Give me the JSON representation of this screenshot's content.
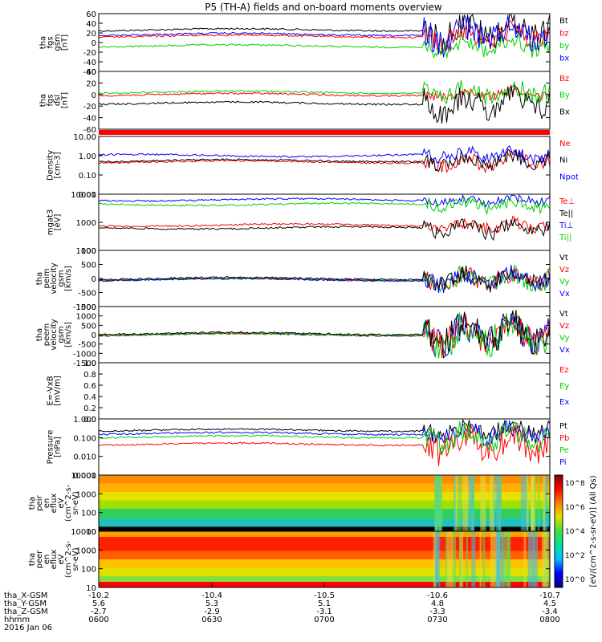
{
  "title": "P5 (TH-A) fields and on-board moments overview",
  "colors": {
    "black": "#000000",
    "red": "#ff0000",
    "green": "#00d000",
    "blue": "#0000ff"
  },
  "panels": [
    {
      "ylabel": [
        "tha",
        "fgs",
        "gsm",
        "[nT]"
      ],
      "yticks": [
        "60",
        "40",
        "20",
        "0",
        "-20",
        "-40",
        "-60"
      ],
      "legend": [
        {
          "text": "Bt",
          "color": "black"
        },
        {
          "text": "bz",
          "color": "red"
        },
        {
          "text": "by",
          "color": "green"
        },
        {
          "text": "bx",
          "color": "blue"
        }
      ]
    },
    {
      "ylabel": [
        "tha",
        "fgs",
        "dsl",
        "[nT]"
      ],
      "yticks": [
        "40",
        "20",
        "0",
        "-20",
        "-40",
        "-60"
      ],
      "legend": [
        {
          "text": "Bz",
          "color": "red"
        },
        {
          "text": "By",
          "color": "green"
        },
        {
          "text": "Bx",
          "color": "black"
        }
      ]
    },
    {
      "ylabel": [
        "Density",
        "[cm-3]"
      ],
      "yticks": [
        "10.00",
        "1.00",
        "0.10",
        "0.01"
      ],
      "legend": [
        {
          "text": "Ne",
          "color": "red"
        },
        {
          "text": "Ni",
          "color": "black"
        },
        {
          "text": "Npot",
          "color": "blue"
        }
      ]
    },
    {
      "ylabel": [
        "mgat3",
        "[eV]"
      ],
      "yticks": [
        "10000",
        "1000",
        "100"
      ],
      "legend": [
        {
          "text": "Te⊥",
          "color": "red"
        },
        {
          "text": "Te||",
          "color": "black"
        },
        {
          "text": "Ti⊥",
          "color": "blue"
        },
        {
          "text": "Ti||",
          "color": "green"
        }
      ]
    },
    {
      "ylabel": [
        "tha",
        "peim",
        "velocity",
        "gsm",
        "[km/s]"
      ],
      "yticks": [
        "1000",
        "500",
        "0",
        "-500",
        "-1000"
      ],
      "legend": [
        {
          "text": "Vt",
          "color": "black"
        },
        {
          "text": "Vz",
          "color": "red"
        },
        {
          "text": "Vy",
          "color": "green"
        },
        {
          "text": "Vx",
          "color": "blue"
        }
      ]
    },
    {
      "ylabel": [
        "tha",
        "peem",
        "velocity",
        "gsm",
        "[km/s]"
      ],
      "yticks": [
        "1500",
        "1000",
        "500",
        "0",
        "-500",
        "-1000",
        "-1500"
      ],
      "legend": [
        {
          "text": "Vt",
          "color": "black"
        },
        {
          "text": "Vz",
          "color": "red"
        },
        {
          "text": "Vy",
          "color": "green"
        },
        {
          "text": "Vx",
          "color": "blue"
        }
      ]
    },
    {
      "ylabel": [
        "E=-VxB",
        "[mV/m]"
      ],
      "yticks": [
        "1.0",
        "0.8",
        "0.6",
        "0.4",
        "0.2",
        "0.0"
      ],
      "legend": [
        {
          "text": "Ez",
          "color": "red"
        },
        {
          "text": "Ey",
          "color": "green"
        },
        {
          "text": "Ex",
          "color": "blue"
        }
      ]
    },
    {
      "ylabel": [
        "Pressure",
        "[nPa]"
      ],
      "yticks": [
        "1.000",
        "0.100",
        "0.010",
        "0.001"
      ],
      "legend": [
        {
          "text": "Pt",
          "color": "black"
        },
        {
          "text": "Pb",
          "color": "red"
        },
        {
          "text": "Pe",
          "color": "green"
        },
        {
          "text": "Pi",
          "color": "blue"
        }
      ]
    },
    {
      "ylabel": [
        "tha",
        "peir",
        "en",
        "eflux",
        "eV",
        "(cm^2-s-",
        "sr-eV)"
      ],
      "yticks": [
        "10000",
        "1000",
        "100",
        "10"
      ],
      "legend": []
    },
    {
      "ylabel": [
        "tha",
        "peer",
        "en",
        "eflux",
        "eV",
        "(cm^2-s-",
        "sr-eV)"
      ],
      "yticks": [
        "10000",
        "1000",
        "100",
        "10"
      ],
      "legend": []
    }
  ],
  "colorbar": {
    "label": "[eV/(cm^2-s-sr-eV)] (All Qs)",
    "ticks": [
      "10^8",
      "10^6",
      "10^4",
      "10^2",
      "10^0"
    ]
  },
  "footer": {
    "rows": [
      {
        "label": "tha_X-GSM",
        "values": [
          "-10.2",
          "-10.4",
          "-10.5",
          "-10.6",
          "-10.7"
        ]
      },
      {
        "label": "tha_Y-GSM",
        "values": [
          "5.6",
          "5.3",
          "5.1",
          "4.8",
          "4.5"
        ]
      },
      {
        "label": "tha_Z-GSM",
        "values": [
          "-2.7",
          "-2.9",
          "-3.1",
          "-3.3",
          "-3.4"
        ]
      },
      {
        "label": "hhmm",
        "values": [
          "0600",
          "0630",
          "0700",
          "0730",
          "0800"
        ]
      }
    ],
    "date": "2016 Jan 06"
  },
  "chart_data": {
    "type": "line",
    "x_label": "hhmm",
    "x_ticks": [
      "0600",
      "0630",
      "0700",
      "0730",
      "0800"
    ],
    "x_range": [
      "0600",
      "0800"
    ],
    "series_summary": [
      {
        "panel": "fgs gsm",
        "series": [
          {
            "name": "Bt",
            "approx_nT_quiet": 20
          },
          {
            "name": "bz",
            "approx_nT_quiet": 15
          },
          {
            "name": "by",
            "approx_nT_quiet": -10
          },
          {
            "name": "bx",
            "approx_nT_quiet": 10
          }
        ]
      },
      {
        "panel": "fgs dsl",
        "series": [
          {
            "name": "Bz",
            "approx_nT_quiet": 0
          },
          {
            "name": "By",
            "approx_nT_quiet": 3
          },
          {
            "name": "Bx",
            "approx_nT_quiet": -15
          }
        ]
      },
      {
        "panel": "Density",
        "series": [
          {
            "name": "Ne",
            "approx": 0.4
          },
          {
            "name": "Ni",
            "approx": 0.5
          },
          {
            "name": "Npot",
            "approx": 0.8
          }
        ]
      },
      {
        "panel": "mgat3",
        "series": [
          {
            "name": "Te⊥",
            "approx_eV": 1500
          },
          {
            "name": "Te||",
            "approx_eV": 1000
          },
          {
            "name": "Ti⊥",
            "approx_eV": 7000
          },
          {
            "name": "Ti||",
            "approx_eV": 5000
          }
        ]
      },
      {
        "panel": "Pressure",
        "series": [
          {
            "name": "Pt",
            "approx_nPa": 0.4
          },
          {
            "name": "Pb",
            "approx_nPa": 0.08
          },
          {
            "name": "Pe",
            "approx_nPa": 0.1
          },
          {
            "name": "Pi",
            "approx_nPa": 0.25
          }
        ]
      }
    ]
  }
}
